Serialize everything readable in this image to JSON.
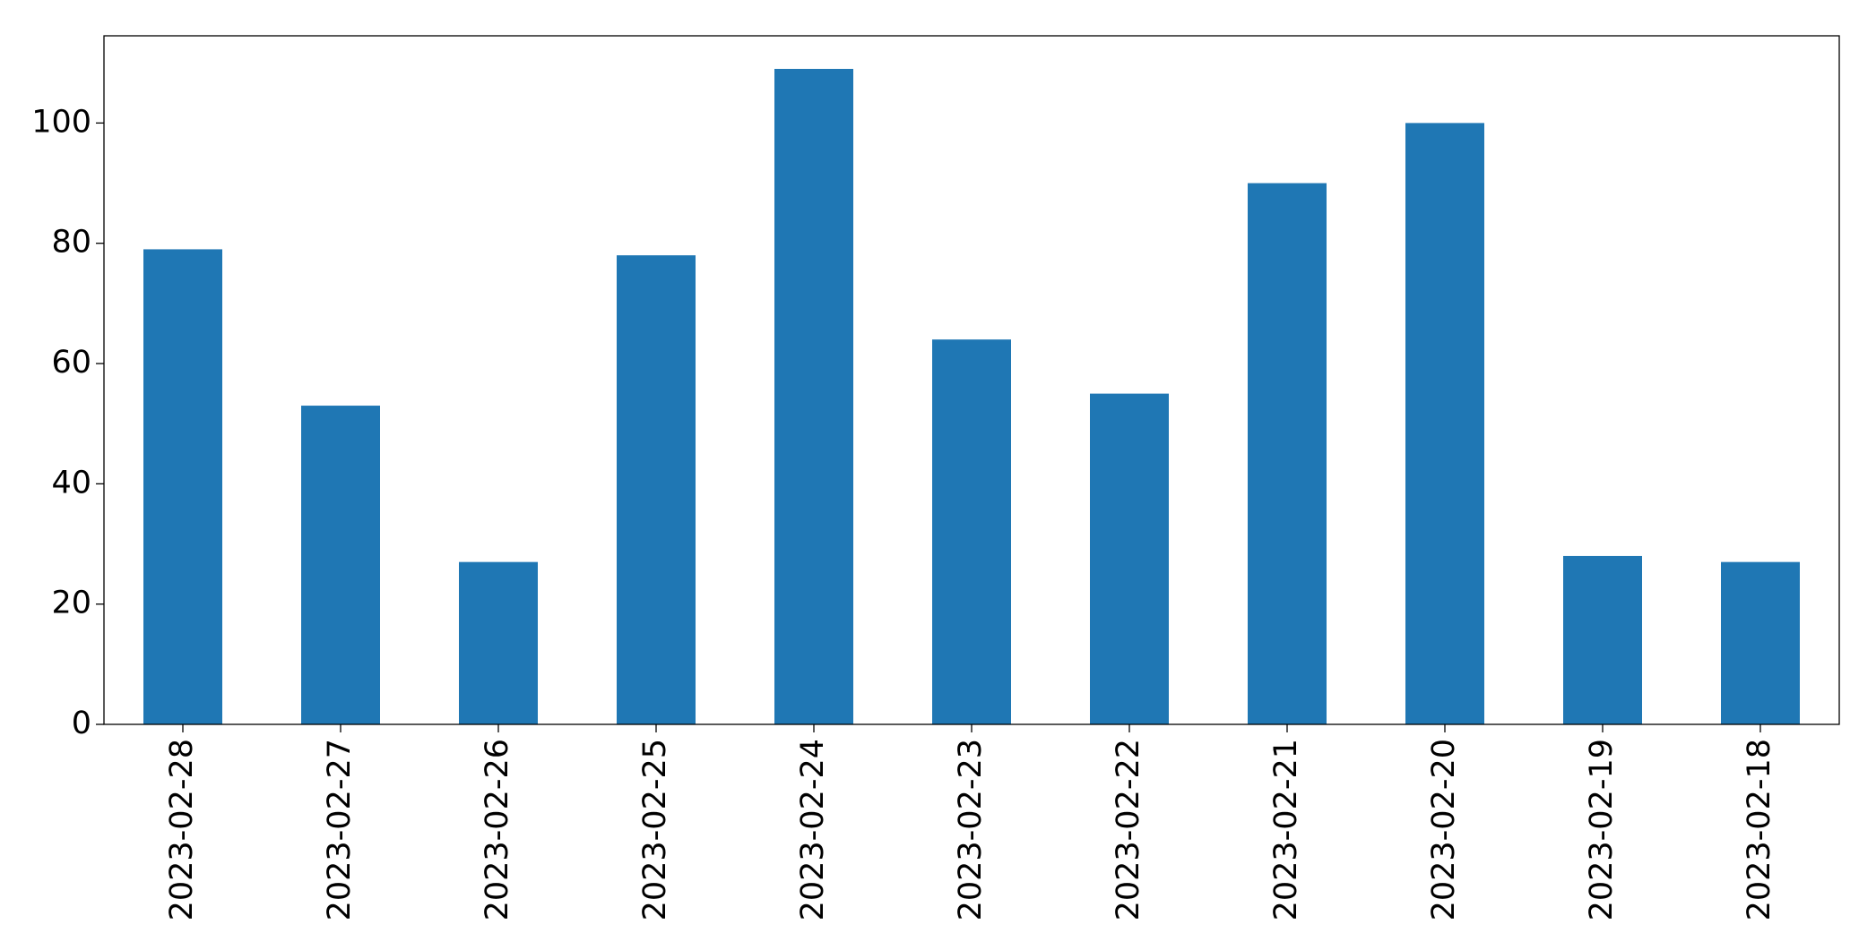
{
  "chart_data": {
    "type": "bar",
    "categories": [
      "2023-02-28",
      "2023-02-27",
      "2023-02-26",
      "2023-02-25",
      "2023-02-24",
      "2023-02-23",
      "2023-02-22",
      "2023-02-21",
      "2023-02-20",
      "2023-02-19",
      "2023-02-18"
    ],
    "values": [
      79,
      53,
      27,
      78,
      109,
      64,
      55,
      90,
      100,
      28,
      27
    ],
    "color": "#1f77b4",
    "ylim": [
      0,
      114.5
    ],
    "yticks": [
      0,
      20,
      40,
      60,
      80,
      100
    ],
    "grid": false
  }
}
